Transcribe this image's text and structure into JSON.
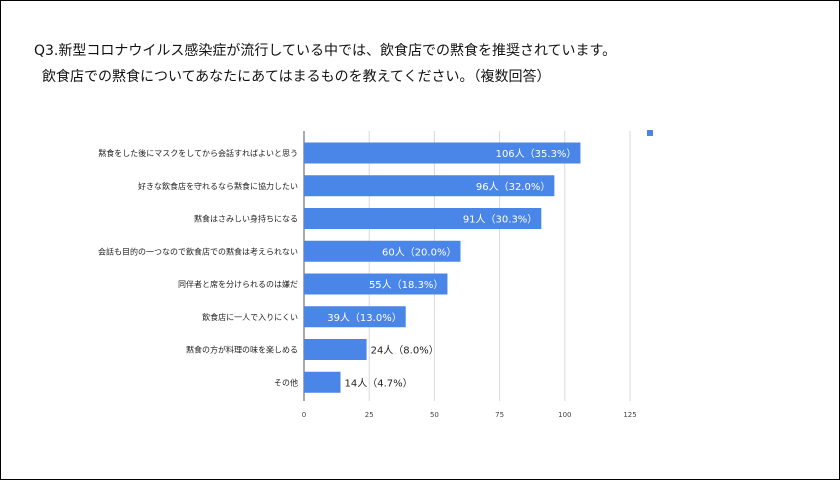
{
  "title_line1": "Q3.新型コロナウイルス感染症が流行している中では、飲食店での黙食を推奨されています。",
  "title_line2": "飲食店での黙食についてあなたにあてはまるものを教えてください。（複数回答）",
  "chart_data": {
    "type": "bar",
    "orientation": "horizontal",
    "categories": [
      "黙食をした後にマスクをしてから会話すればよいと思う",
      "好きな飲食店を守れるなら黙食に協力したい",
      "黙食はさみしい身持ちになる",
      "会話も目的の一つなので飲食店での黙食は考えられない",
      "同伴者と席を分けられるのは嫌だ",
      "飲食店に一人で入りにくい",
      "黙食の方が料理の味を楽しめる",
      "その他"
    ],
    "values": [
      106,
      96,
      91,
      60,
      55,
      39,
      24,
      14
    ],
    "data_labels": [
      "106人（35.3%）",
      "96人（32.0%）",
      "91人（30.3%）",
      "60人（20.0%）",
      "55人（18.3%）",
      "39人（13.0%）",
      "24人（8.0%）",
      "14人（4.7%）"
    ],
    "xlim": [
      0,
      125
    ],
    "xticks": [
      "0",
      "25",
      "50",
      "75",
      "100",
      "125"
    ],
    "grid": true,
    "legend": "top-right",
    "bar_color": "#4a86e8"
  }
}
